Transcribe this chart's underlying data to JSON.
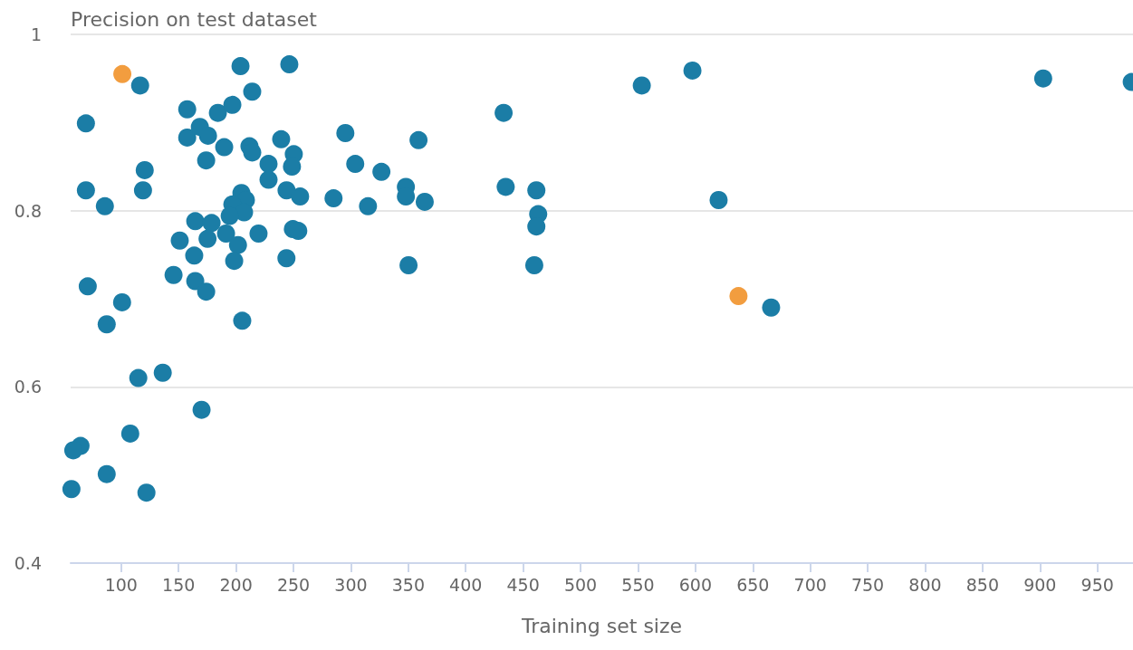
{
  "chart_data": {
    "type": "scatter",
    "ylabel": "Precision on test dataset",
    "xlabel": "Training set size",
    "marker": "circle",
    "grid": "y",
    "xlim": [
      56,
      981
    ],
    "xticks": [
      100,
      150,
      200,
      250,
      300,
      350,
      400,
      450,
      500,
      550,
      600,
      650,
      700,
      750,
      800,
      850,
      900,
      950
    ],
    "ylim": [
      0.4,
      1
    ],
    "yticks": [
      0.4,
      0.6,
      0.8,
      1
    ],
    "series": [
      {
        "color": "#1b7da6",
        "x": [
          116.5,
          69.3,
          69.3,
          85.8,
          70.9,
          87.4,
          100.8,
          120.5,
          119,
          157.5,
          157.5,
          168.5,
          175.6,
          184.2,
          196.8,
          203.9,
          214.1,
          189.7,
          174,
          211.7,
          214.1,
          239.3,
          246.4,
          228.3,
          228.3,
          250.3,
          248.7,
          244,
          255.8,
          204.7,
          208.6,
          196.8,
          207,
          194.5,
          164.5,
          178.7,
          191.3,
          219.6,
          249.5,
          254.2,
          201.7,
          175.2,
          151,
          163.6,
          198.4,
          243.9,
          145.6,
          164.5,
          174,
          205.4,
          295.2,
          303.8,
          326.6,
          284.9,
          314.9,
          347.9,
          347.9,
          358.9,
          364.3,
          350.2,
          433,
          434.8,
          461.5,
          463.1,
          461.5,
          459.7,
          553.3,
          597.4,
          620.2,
          665.9,
          902.8,
          979.9,
          114.9,
          136.2,
          170,
          107.9,
          64.6,
          58.3,
          87.4,
          56.7,
          122
        ],
        "values": [
          0.942,
          0.899,
          0.823,
          0.805,
          0.714,
          0.671,
          0.696,
          0.846,
          0.823,
          0.915,
          0.883,
          0.895,
          0.885,
          0.911,
          0.92,
          0.964,
          0.935,
          0.872,
          0.857,
          0.873,
          0.866,
          0.881,
          0.966,
          0.853,
          0.835,
          0.864,
          0.85,
          0.823,
          0.816,
          0.82,
          0.812,
          0.807,
          0.798,
          0.794,
          0.788,
          0.786,
          0.774,
          0.774,
          0.779,
          0.777,
          0.761,
          0.768,
          0.766,
          0.749,
          0.743,
          0.746,
          0.727,
          0.72,
          0.708,
          0.675,
          0.888,
          0.853,
          0.844,
          0.814,
          0.805,
          0.827,
          0.816,
          0.88,
          0.81,
          0.738,
          0.911,
          0.827,
          0.823,
          0.796,
          0.782,
          0.738,
          0.942,
          0.959,
          0.812,
          0.69,
          0.95,
          0.946,
          0.61,
          0.616,
          0.574,
          0.547,
          0.533,
          0.528,
          0.501,
          0.484,
          0.48
        ]
      },
      {
        "color": "#f29d3f",
        "x": [
          101,
          637.5
        ],
        "values": [
          0.955,
          0.703
        ]
      }
    ]
  }
}
